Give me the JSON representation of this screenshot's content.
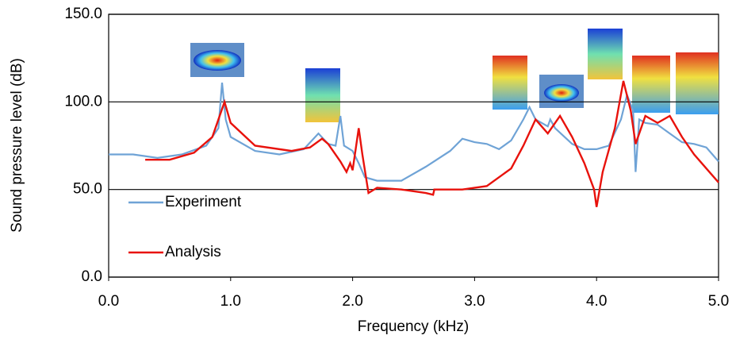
{
  "chart_data": {
    "type": "line",
    "x_label": "Frequency (kHz)",
    "y_label": "Sound pressure level (dB)",
    "xlim": [
      0,
      5
    ],
    "ylim": [
      0,
      150
    ],
    "xticks": [
      {
        "value": 0,
        "label": "0.0"
      },
      {
        "value": 1,
        "label": "1.0"
      },
      {
        "value": 2,
        "label": "2.0"
      },
      {
        "value": 3,
        "label": "3.0"
      },
      {
        "value": 4,
        "label": "4.0"
      },
      {
        "value": 5,
        "label": "5.0"
      }
    ],
    "yticks": [
      {
        "value": 0,
        "label": "0.0"
      },
      {
        "value": 50,
        "label": "50.0"
      },
      {
        "value": 100,
        "label": "100.0"
      },
      {
        "value": 150,
        "label": "150.0"
      }
    ],
    "grid": true,
    "legend_position": "lower left",
    "series": [
      {
        "name": "Experiment",
        "color": "#6fa3d6",
        "x": [
          0,
          0.2,
          0.4,
          0.6,
          0.8,
          0.9,
          0.93,
          0.96,
          1.0,
          1.2,
          1.4,
          1.6,
          1.72,
          1.8,
          1.86,
          1.9,
          1.93,
          2.0,
          2.05,
          2.1,
          2.2,
          2.4,
          2.6,
          2.8,
          2.9,
          3.0,
          3.1,
          3.2,
          3.3,
          3.4,
          3.45,
          3.5,
          3.6,
          3.62,
          3.66,
          3.8,
          3.9,
          4.0,
          4.1,
          4.2,
          4.25,
          4.3,
          4.32,
          4.35,
          4.4,
          4.5,
          4.6,
          4.7,
          4.8,
          4.9,
          4.95,
          5.0
        ],
        "values": [
          70,
          70,
          68,
          70,
          75,
          85,
          111,
          90,
          80,
          72,
          70,
          73,
          82,
          76,
          75,
          92,
          75,
          72,
          65,
          57,
          55,
          55,
          63,
          72,
          79,
          77,
          76,
          73,
          78,
          90,
          97,
          90,
          86,
          90,
          85,
          76,
          73,
          73,
          75,
          90,
          104,
          95,
          60,
          90,
          88,
          87,
          82,
          77,
          76,
          74,
          70,
          66
        ]
      },
      {
        "name": "Analysis",
        "color": "#e8120c",
        "x": [
          0.3,
          0.5,
          0.7,
          0.85,
          0.95,
          1.0,
          1.2,
          1.5,
          1.65,
          1.75,
          1.8,
          1.9,
          1.95,
          1.98,
          2.0,
          2.05,
          2.08,
          2.13,
          2.2,
          2.4,
          2.6,
          2.66,
          2.67,
          2.9,
          3.1,
          3.3,
          3.4,
          3.5,
          3.6,
          3.7,
          3.8,
          3.9,
          3.98,
          4.0,
          4.05,
          4.15,
          4.22,
          4.28,
          4.32,
          4.4,
          4.5,
          4.6,
          4.7,
          4.8,
          4.9,
          5.0
        ],
        "values": [
          67,
          67,
          71,
          80,
          100,
          88,
          75,
          72,
          74,
          79,
          76,
          66,
          60,
          65,
          61,
          85,
          70,
          48,
          51,
          50,
          48,
          47,
          50,
          50,
          52,
          62,
          75,
          90,
          82,
          92,
          80,
          65,
          50,
          40,
          60,
          85,
          112,
          95,
          76,
          92,
          88,
          92,
          80,
          70,
          62,
          54
        ]
      }
    ]
  }
}
